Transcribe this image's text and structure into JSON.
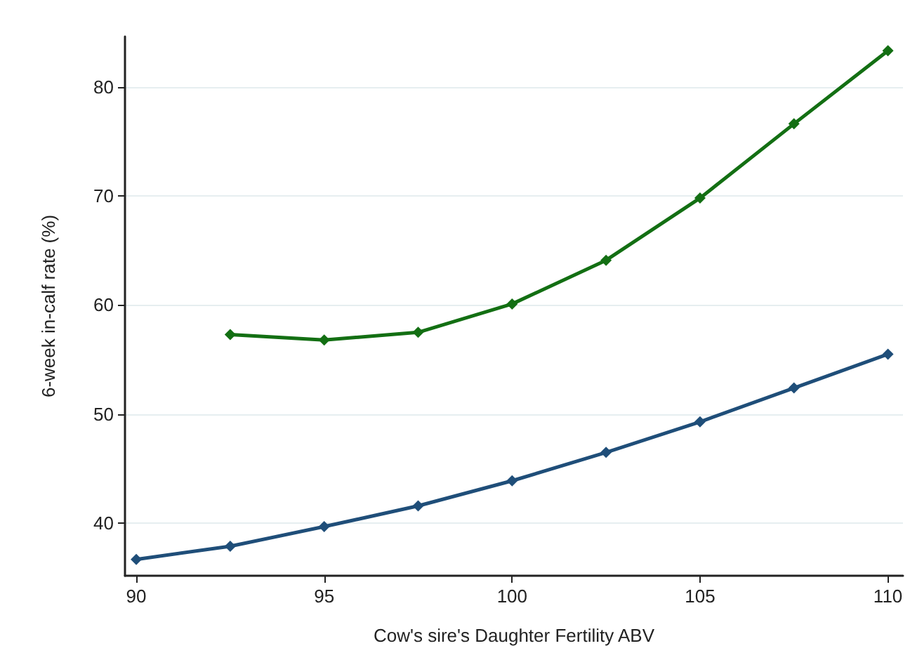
{
  "chart_data": {
    "type": "line",
    "xlabel": "Cow's sire's Daughter Fertility ABV",
    "ylabel": "6-week in-calf rate (%)",
    "xlim": [
      89.7,
      110.4
    ],
    "xticks": [
      90,
      95,
      100,
      105,
      110
    ],
    "ylim": [
      35.2,
      84.6
    ],
    "yticks": [
      40,
      50,
      60,
      70,
      80
    ],
    "grid": "y",
    "marker": "diamond",
    "line_style": "solid",
    "series": [
      {
        "color": "#1f4e79",
        "x": [
          90,
          92.5,
          95,
          97.5,
          100,
          102.5,
          105,
          107.5,
          110
        ],
        "values": [
          36.7,
          37.9,
          39.7,
          41.6,
          43.9,
          46.5,
          49.3,
          52.4,
          55.5
        ]
      },
      {
        "color": "#136f13",
        "x": [
          92.5,
          95,
          97.5,
          100,
          102.5,
          105,
          107.5,
          110
        ],
        "values": [
          57.3,
          56.8,
          57.5,
          60.1,
          64.1,
          69.8,
          76.6,
          83.3
        ]
      }
    ]
  }
}
